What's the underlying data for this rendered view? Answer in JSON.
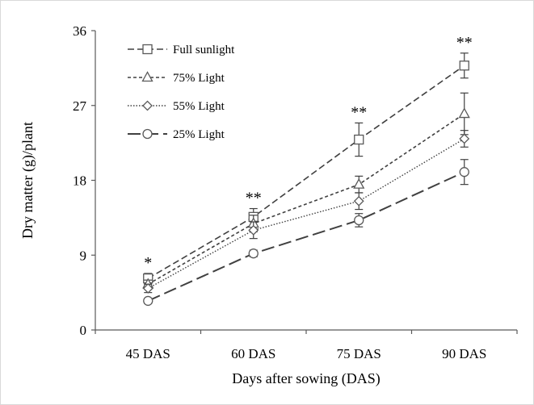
{
  "chart_data": {
    "type": "line",
    "xlabel": "Days after sowing (DAS)",
    "ylabel": "Dry matter (g)/plant",
    "categories": [
      "45 DAS",
      "60 DAS",
      "75 DAS",
      "90 DAS"
    ],
    "ylim": [
      0,
      36
    ],
    "yticks": [
      "0",
      "9",
      "18",
      "27",
      "36"
    ],
    "grid": false,
    "legend_position": "top-left",
    "significance": [
      "*",
      "**",
      "**",
      "**"
    ],
    "series": [
      {
        "name": "Full sunlight",
        "marker": "square",
        "dash": "dashed",
        "values": [
          6.2,
          13.6,
          22.9,
          31.8
        ],
        "errors": [
          0.6,
          1.0,
          2.0,
          1.5
        ]
      },
      {
        "name": "75% Light",
        "marker": "triangle",
        "dash": "short-dash",
        "values": [
          5.5,
          12.8,
          17.5,
          26.0
        ],
        "errors": [
          0.5,
          1.0,
          1.0,
          2.5
        ]
      },
      {
        "name": "55% Light",
        "marker": "diamond",
        "dash": "dotted",
        "values": [
          5.0,
          12.0,
          15.5,
          23.0
        ],
        "errors": [
          0.5,
          1.0,
          1.0,
          1.0
        ]
      },
      {
        "name": "25% Light",
        "marker": "circle",
        "dash": "long-dash",
        "values": [
          3.5,
          9.2,
          13.2,
          19.0
        ],
        "errors": [
          0.3,
          0.4,
          0.8,
          1.5
        ]
      }
    ]
  }
}
